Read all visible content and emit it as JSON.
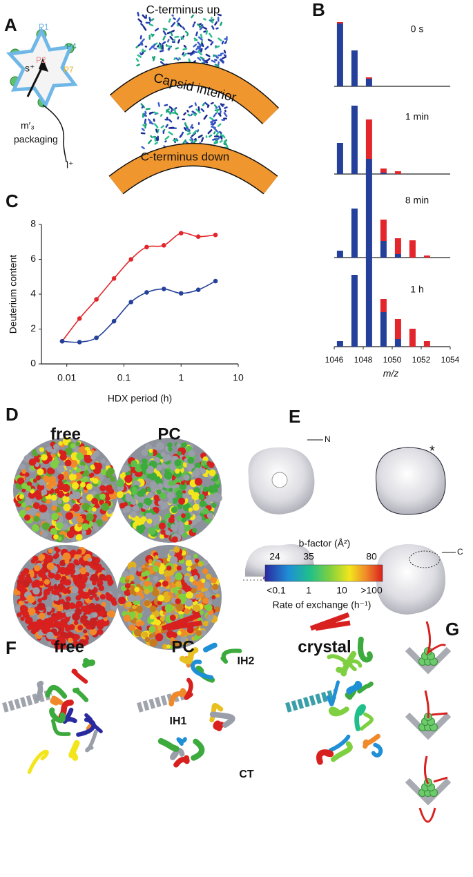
{
  "letters": [
    "A",
    "B",
    "C",
    "D",
    "E",
    "F",
    "G"
  ],
  "panel_a": {
    "labels": [
      "P1",
      "P4",
      "P2",
      "P7",
      "s⁺",
      "m′₃",
      "packaging",
      "l⁺"
    ],
    "top": "C-terminus up",
    "interior": "Capsid interior",
    "bottom": "C-terminus down"
  },
  "panel_d": {
    "columns": [
      "free",
      "PC"
    ]
  },
  "panel_e": {
    "labels": [
      "N",
      "*",
      "C"
    ],
    "colorbar": {
      "title": "b-factor (Å²)",
      "top_ticks": [
        "24",
        "35",
        "80"
      ],
      "bottom_ticks": [
        "<0.1",
        "1",
        "10",
        ">100"
      ],
      "caption": "Rate of exchange (h⁻¹)"
    }
  },
  "panel_f": {
    "columns": [
      "free",
      "PC",
      "crystal"
    ],
    "labels": [
      "IH1",
      "IH2",
      "CT"
    ]
  },
  "chart_data": [
    {
      "type": "scatter",
      "x_label": "HDX period (h)",
      "y_label": "Deuterium content",
      "x_scale": "log",
      "lines": true,
      "x": [
        0.0083,
        0.0167,
        0.033,
        0.067,
        0.133,
        0.25,
        0.5,
        1,
        2,
        4
      ],
      "series": [
        {
          "color": "#e2262b",
          "values": [
            1.3,
            2.6,
            3.7,
            4.9,
            6.0,
            6.7,
            6.8,
            7.5,
            7.3,
            7.4
          ]
        },
        {
          "color": "#24409a",
          "values": [
            1.3,
            1.25,
            1.5,
            2.45,
            3.55,
            4.1,
            4.3,
            4.05,
            4.25,
            4.75
          ]
        }
      ],
      "xlim": [
        0.0036,
        10
      ],
      "ylim": [
        0,
        8
      ],
      "xticks": [
        0.01,
        0.1,
        1,
        10
      ],
      "yticks": [
        0,
        2,
        4,
        6,
        8
      ]
    },
    {
      "type": "bar",
      "stacked": true,
      "title": "0 s",
      "x": [
        1046.4,
        1047.4,
        1048.4
      ],
      "series": [
        {
          "color": "#24409a",
          "values": [
            91,
            52,
            11
          ]
        },
        {
          "color": "#e2262b",
          "values": [
            2,
            0,
            2
          ]
        }
      ],
      "xlim": [
        1046,
        1054
      ],
      "ylim": [
        0,
        140
      ]
    },
    {
      "type": "bar",
      "stacked": true,
      "title": "1 min",
      "x": [
        1046.4,
        1047.4,
        1048.4,
        1049.4,
        1050.4
      ],
      "series": [
        {
          "color": "#24409a",
          "values": [
            45,
            99,
            22,
            2,
            0
          ]
        },
        {
          "color": "#e2262b",
          "values": [
            0,
            0,
            57,
            6,
            4
          ]
        }
      ],
      "xlim": [
        1046,
        1054
      ],
      "ylim": [
        0,
        140
      ]
    },
    {
      "type": "bar",
      "stacked": true,
      "title": "8 min",
      "x": [
        1046.4,
        1047.4,
        1048.4,
        1049.4,
        1050.4,
        1051.4,
        1052.4
      ],
      "series": [
        {
          "color": "#24409a",
          "values": [
            10,
            71,
            129,
            24,
            5,
            0,
            0
          ]
        },
        {
          "color": "#e2262b",
          "values": [
            0,
            0,
            0,
            31,
            23,
            25,
            3
          ]
        }
      ],
      "xlim": [
        1046,
        1054
      ],
      "ylim": [
        0,
        140
      ]
    },
    {
      "type": "bar",
      "stacked": true,
      "title": "1 h",
      "x": [
        1046.4,
        1047.4,
        1048.4,
        1049.4,
        1050.4,
        1051.4,
        1052.4
      ],
      "series": [
        {
          "color": "#24409a",
          "values": [
            8,
            104,
            137,
            50,
            11,
            0,
            0
          ]
        },
        {
          "color": "#e2262b",
          "values": [
            0,
            0,
            0,
            19,
            29,
            26,
            8
          ]
        }
      ],
      "xlim": [
        1046,
        1054
      ],
      "ylim": [
        0,
        140
      ],
      "x_label": "m/z",
      "xticks": [
        1046,
        1048,
        1050,
        1052,
        1054
      ]
    }
  ]
}
